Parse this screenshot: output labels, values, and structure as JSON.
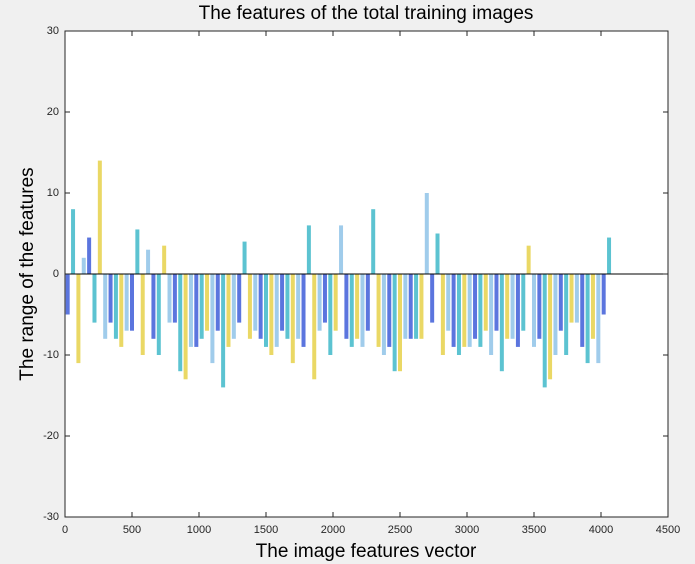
{
  "chart_data": {
    "type": "bar",
    "title": "The features of the total training images",
    "x_label": "The image features vector",
    "y_label": "The range of the features",
    "xlim": [
      0,
      4500
    ],
    "xticks": [
      0,
      500,
      1000,
      1500,
      2000,
      2500,
      3000,
      3500,
      4000,
      4500
    ],
    "ylim": [
      -30,
      30
    ],
    "yticks": [
      -30,
      -20,
      -10,
      0,
      10,
      20,
      30
    ],
    "series": [
      {
        "color": "#3e5dd8",
        "x": [
          20,
          180,
          340,
          500,
          660,
          820,
          980,
          1140,
          1300,
          1460,
          1620,
          1780,
          1940,
          2100,
          2260,
          2420,
          2580,
          2740,
          2900,
          3060,
          3220,
          3380,
          3540,
          3700,
          3860,
          4020
        ],
        "values": [
          -5,
          4.5,
          -6,
          -7,
          -8,
          -6,
          -9,
          -7,
          -6,
          -8,
          -7,
          -9,
          -6,
          -8,
          -7,
          -9,
          -8,
          -6,
          -9,
          -8,
          -7,
          -9,
          -8,
          -7,
          -9,
          -5
        ]
      },
      {
        "color": "#3fb9c9",
        "x": [
          60,
          220,
          380,
          540,
          700,
          860,
          1020,
          1180,
          1340,
          1500,
          1660,
          1820,
          1980,
          2140,
          2300,
          2460,
          2620,
          2780,
          2940,
          3100,
          3260,
          3420,
          3580,
          3740,
          3900,
          4060
        ],
        "values": [
          8,
          -6,
          -8,
          5.5,
          -10,
          -12,
          -8,
          -14,
          4,
          -9,
          -8,
          6,
          -10,
          -9,
          8,
          -12,
          -8,
          5,
          -10,
          -9,
          -12,
          -7,
          -14,
          -10,
          -11,
          4.5
        ]
      },
      {
        "color": "#e6d14a",
        "x": [
          100,
          260,
          420,
          580,
          740,
          900,
          1060,
          1220,
          1380,
          1540,
          1700,
          1860,
          2020,
          2180,
          2340,
          2500,
          2660,
          2820,
          2980,
          3140,
          3300,
          3460,
          3620,
          3780,
          3940
        ],
        "values": [
          -11,
          14,
          -9,
          -10,
          3.5,
          -13,
          -7,
          -9,
          -8,
          -10,
          -11,
          -13,
          -7,
          -8,
          -9,
          -12,
          -8,
          -10,
          -9,
          -7,
          -8,
          3.5,
          -13,
          -6,
          -8
        ]
      },
      {
        "color": "#8fc3e8",
        "x": [
          140,
          300,
          460,
          620,
          780,
          940,
          1100,
          1260,
          1420,
          1580,
          1740,
          1900,
          2060,
          2220,
          2380,
          2540,
          2700,
          2860,
          3020,
          3180,
          3340,
          3500,
          3660,
          3820,
          3980
        ],
        "values": [
          2,
          -8,
          -7,
          3,
          -6,
          -9,
          -11,
          -8,
          -7,
          -9,
          -8,
          -7,
          6,
          -9,
          -10,
          -8,
          10,
          -7,
          -9,
          -10,
          -8,
          -9,
          -10,
          -6,
          -11
        ]
      }
    ]
  }
}
